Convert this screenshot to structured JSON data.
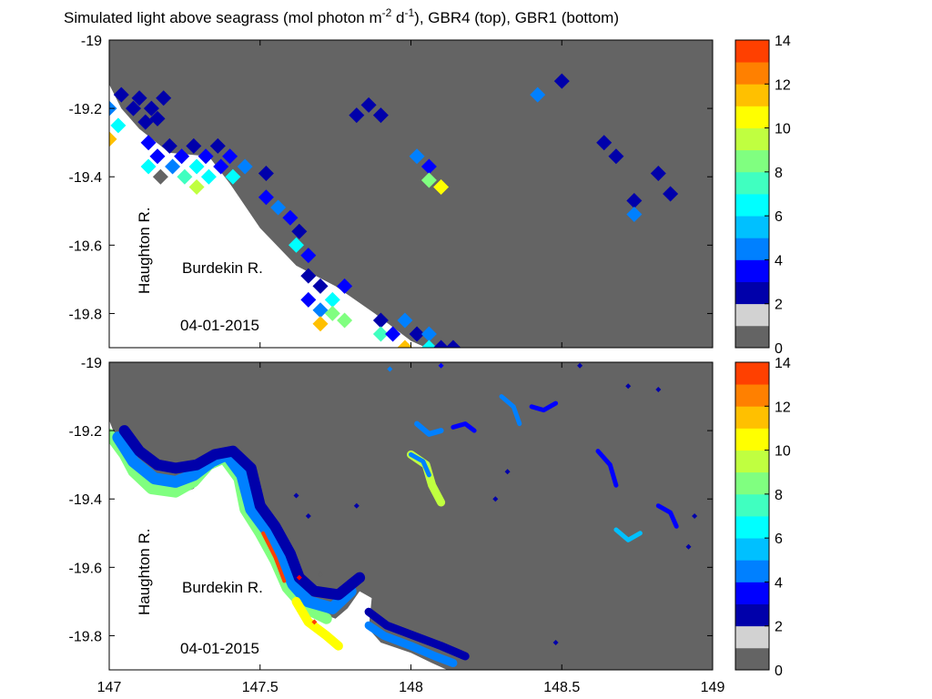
{
  "title": "Simulated light above seagrass (mol photon m^-2 d^-1), GBR4 (top), GBR1 (bottom)",
  "title_parts": {
    "pre": "Simulated light above seagrass (mol photon m",
    "sup1": "-2",
    "mid": " d",
    "sup2": "-1",
    "post": "), GBR4 (top), GBR1 (bottom)"
  },
  "colors": {
    "ocean": "#646464",
    "land": "#ffffff",
    "zero_light": "#d2d2d2",
    "colormap": [
      "#646464",
      "#d2d2d2",
      "#0000aa",
      "#0000ff",
      "#0080ff",
      "#00c0ff",
      "#00ffff",
      "#40ffc0",
      "#80ff80",
      "#c0ff40",
      "#ffff00",
      "#ffc000",
      "#ff8000",
      "#ff4000",
      "#ff0000"
    ]
  },
  "chart_data": [
    {
      "type": "heatmap",
      "name": "GBR4",
      "position": "top",
      "xlim": [
        147,
        149
      ],
      "ylim": [
        -19.9,
        -19
      ],
      "x_ticks": [
        "147",
        "147.5",
        "148",
        "148.5",
        "149"
      ],
      "y_ticks": [
        "-19",
        "-19.2",
        "-19.4",
        "-19.6",
        "-19.8"
      ],
      "show_x_tick_labels": false,
      "colorbar": {
        "range": [
          0,
          14
        ],
        "ticks": [
          "0",
          "2",
          "4",
          "6",
          "8",
          "10",
          "12",
          "14"
        ],
        "levels": 14
      },
      "annotations": [
        "Haughton R.",
        "Burdekin R.",
        "04-01-2015"
      ],
      "coastline": [
        [
          147,
          -19.13
        ],
        [
          147.04,
          -19.2
        ],
        [
          147.1,
          -19.26
        ],
        [
          147.2,
          -19.33
        ],
        [
          147.33,
          -19.34
        ],
        [
          147.4,
          -19.42
        ],
        [
          147.5,
          -19.55
        ],
        [
          147.62,
          -19.66
        ],
        [
          147.75,
          -19.72
        ],
        [
          147.88,
          -19.8
        ],
        [
          148.0,
          -19.88
        ],
        [
          148.05,
          -19.9
        ],
        [
          147,
          -19.9
        ]
      ],
      "cells": [
        {
          "x": 147.0,
          "y": -19.2,
          "v": 3.5
        },
        {
          "x": 147.03,
          "y": -19.25,
          "v": 5.5
        },
        {
          "x": 147.0,
          "y": -19.29,
          "v": 10.5
        },
        {
          "x": 147.04,
          "y": -19.16,
          "v": 1
        },
        {
          "x": 147.08,
          "y": -19.2,
          "v": 1
        },
        {
          "x": 147.1,
          "y": -19.17,
          "v": 1
        },
        {
          "x": 147.14,
          "y": -19.2,
          "v": 1
        },
        {
          "x": 147.18,
          "y": -19.17,
          "v": 1
        },
        {
          "x": 147.16,
          "y": -19.23,
          "v": 1
        },
        {
          "x": 147.12,
          "y": -19.24,
          "v": 1
        },
        {
          "x": 147.13,
          "y": -19.3,
          "v": 2.5
        },
        {
          "x": 147.16,
          "y": -19.34,
          "v": 2.5
        },
        {
          "x": 147.2,
          "y": -19.31,
          "v": 1
        },
        {
          "x": 147.24,
          "y": -19.34,
          "v": 2.5
        },
        {
          "x": 147.28,
          "y": -19.31,
          "v": 1
        },
        {
          "x": 147.32,
          "y": -19.34,
          "v": 2.5
        },
        {
          "x": 147.36,
          "y": -19.31,
          "v": 1
        },
        {
          "x": 147.4,
          "y": -19.34,
          "v": 2.5
        },
        {
          "x": 147.13,
          "y": -19.37,
          "v": 5.5
        },
        {
          "x": 147.17,
          "y": -19.4,
          "v": 0
        },
        {
          "x": 147.21,
          "y": -19.37,
          "v": 3.5
        },
        {
          "x": 147.25,
          "y": -19.4,
          "v": 6.5
        },
        {
          "x": 147.29,
          "y": -19.37,
          "v": 5.5
        },
        {
          "x": 147.29,
          "y": -19.43,
          "v": 8.5
        },
        {
          "x": 147.33,
          "y": -19.4,
          "v": 5.5
        },
        {
          "x": 147.37,
          "y": -19.37,
          "v": 2.5
        },
        {
          "x": 147.41,
          "y": -19.4,
          "v": 5.5
        },
        {
          "x": 147.45,
          "y": -19.37,
          "v": 3.5
        },
        {
          "x": 147.52,
          "y": -19.39,
          "v": 1
        },
        {
          "x": 147.52,
          "y": -19.46,
          "v": 2.5
        },
        {
          "x": 147.56,
          "y": -19.49,
          "v": 3.5
        },
        {
          "x": 147.6,
          "y": -19.52,
          "v": 2.5
        },
        {
          "x": 147.63,
          "y": -19.56,
          "v": 1
        },
        {
          "x": 147.62,
          "y": -19.6,
          "v": 5.5
        },
        {
          "x": 147.66,
          "y": -19.63,
          "v": 2.5
        },
        {
          "x": 147.66,
          "y": -19.69,
          "v": 1
        },
        {
          "x": 147.7,
          "y": -19.72,
          "v": 1
        },
        {
          "x": 147.78,
          "y": -19.72,
          "v": 2.5
        },
        {
          "x": 147.66,
          "y": -19.76,
          "v": 2.5
        },
        {
          "x": 147.7,
          "y": -19.79,
          "v": 3.5
        },
        {
          "x": 147.74,
          "y": -19.76,
          "v": 5.5
        },
        {
          "x": 147.74,
          "y": -19.8,
          "v": 7.5
        },
        {
          "x": 147.7,
          "y": -19.83,
          "v": 10.5
        },
        {
          "x": 147.78,
          "y": -19.82,
          "v": 7.5
        },
        {
          "x": 147.9,
          "y": -19.82,
          "v": 1
        },
        {
          "x": 147.9,
          "y": -19.86,
          "v": 6.5
        },
        {
          "x": 147.94,
          "y": -19.86,
          "v": 2.5
        },
        {
          "x": 147.98,
          "y": -19.82,
          "v": 3.5
        },
        {
          "x": 147.98,
          "y": -19.9,
          "v": 10.5
        },
        {
          "x": 148.02,
          "y": -19.86,
          "v": 1
        },
        {
          "x": 148.06,
          "y": -19.86,
          "v": 3.5
        },
        {
          "x": 148.06,
          "y": -19.9,
          "v": 5.5
        },
        {
          "x": 148.1,
          "y": -19.9,
          "v": 1
        },
        {
          "x": 148.14,
          "y": -19.9,
          "v": 1
        },
        {
          "x": 148.02,
          "y": -19.34,
          "v": 3.5
        },
        {
          "x": 148.06,
          "y": -19.37,
          "v": 2.5
        },
        {
          "x": 148.06,
          "y": -19.41,
          "v": 7.5
        },
        {
          "x": 148.1,
          "y": -19.43,
          "v": 9.5
        },
        {
          "x": 147.82,
          "y": -19.22,
          "v": 1
        },
        {
          "x": 147.86,
          "y": -19.19,
          "v": 1
        },
        {
          "x": 147.9,
          "y": -19.22,
          "v": 1
        },
        {
          "x": 148.42,
          "y": -19.16,
          "v": 3.5
        },
        {
          "x": 148.5,
          "y": -19.12,
          "v": 1
        },
        {
          "x": 148.64,
          "y": -19.3,
          "v": 1
        },
        {
          "x": 148.68,
          "y": -19.34,
          "v": 1
        },
        {
          "x": 148.74,
          "y": -19.47,
          "v": 1
        },
        {
          "x": 148.74,
          "y": -19.51,
          "v": 3.5
        },
        {
          "x": 148.82,
          "y": -19.39,
          "v": 1
        },
        {
          "x": 148.86,
          "y": -19.45,
          "v": 1
        }
      ]
    },
    {
      "type": "heatmap",
      "name": "GBR1",
      "position": "bottom",
      "xlim": [
        147,
        149
      ],
      "ylim": [
        -19.9,
        -19
      ],
      "x_ticks": [
        "147",
        "147.5",
        "148",
        "148.5",
        "149"
      ],
      "y_ticks": [
        "-19",
        "-19.2",
        "-19.4",
        "-19.6",
        "-19.8"
      ],
      "show_x_tick_labels": true,
      "colorbar": {
        "range": [
          0,
          14
        ],
        "ticks": [
          "0",
          "2",
          "4",
          "6",
          "8",
          "10",
          "12",
          "14"
        ],
        "levels": 14
      },
      "annotations": [
        "Haughton R.",
        "Burdekin R.",
        "04-01-2015"
      ],
      "coastline": [
        [
          147,
          -19.17
        ],
        [
          147.03,
          -19.24
        ],
        [
          147.07,
          -19.32
        ],
        [
          147.14,
          -19.38
        ],
        [
          147.22,
          -19.39
        ],
        [
          147.28,
          -19.37
        ],
        [
          147.33,
          -19.31
        ],
        [
          147.38,
          -19.29
        ],
        [
          147.44,
          -19.35
        ],
        [
          147.46,
          -19.44
        ],
        [
          147.51,
          -19.5
        ],
        [
          147.56,
          -19.58
        ],
        [
          147.6,
          -19.66
        ],
        [
          147.66,
          -19.72
        ],
        [
          147.75,
          -19.75
        ],
        [
          147.79,
          -19.72
        ],
        [
          147.83,
          -19.67
        ],
        [
          147.87,
          -19.69
        ],
        [
          147.86,
          -19.78
        ],
        [
          147.9,
          -19.82
        ],
        [
          148.0,
          -19.85
        ],
        [
          148.07,
          -19.88
        ],
        [
          148.12,
          -19.9
        ],
        [
          147,
          -19.9
        ]
      ],
      "shoreline_bands": [
        {
          "pts": [
            [
              147.0,
              -19.21
            ],
            [
              147.05,
              -19.27
            ],
            [
              147.08,
              -19.32
            ],
            [
              147.14,
              -19.37
            ],
            [
              147.22,
              -19.38
            ],
            [
              147.28,
              -19.35
            ],
            [
              147.33,
              -19.3
            ],
            [
              147.38,
              -19.28
            ],
            [
              147.43,
              -19.34
            ],
            [
              147.45,
              -19.43
            ],
            [
              147.5,
              -19.5
            ],
            [
              147.55,
              -19.58
            ],
            [
              147.59,
              -19.66
            ],
            [
              147.65,
              -19.72
            ],
            [
              147.72,
              -19.75
            ]
          ],
          "v": 7.5,
          "w": 12
        },
        {
          "pts": [
            [
              147.03,
              -19.22
            ],
            [
              147.08,
              -19.29
            ],
            [
              147.15,
              -19.34
            ],
            [
              147.22,
              -19.35
            ],
            [
              147.28,
              -19.33
            ],
            [
              147.34,
              -19.29
            ],
            [
              147.39,
              -19.27
            ],
            [
              147.44,
              -19.33
            ],
            [
              147.47,
              -19.43
            ],
            [
              147.52,
              -19.49
            ],
            [
              147.57,
              -19.57
            ],
            [
              147.61,
              -19.65
            ],
            [
              147.66,
              -19.7
            ],
            [
              147.74,
              -19.72
            ],
            [
              147.8,
              -19.67
            ]
          ],
          "v": 3,
          "w": 13
        },
        {
          "pts": [
            [
              147.05,
              -19.2
            ],
            [
              147.1,
              -19.26
            ],
            [
              147.16,
              -19.3
            ],
            [
              147.22,
              -19.31
            ],
            [
              147.29,
              -19.3
            ],
            [
              147.35,
              -19.27
            ],
            [
              147.41,
              -19.26
            ],
            [
              147.47,
              -19.31
            ],
            [
              147.5,
              -19.42
            ],
            [
              147.55,
              -19.48
            ],
            [
              147.6,
              -19.56
            ],
            [
              147.63,
              -19.63
            ],
            [
              147.68,
              -19.67
            ],
            [
              147.76,
              -19.68
            ],
            [
              147.83,
              -19.63
            ]
          ],
          "v": 1,
          "w": 12
        },
        {
          "pts": [
            [
              147.86,
              -19.77
            ],
            [
              147.91,
              -19.8
            ],
            [
              148.0,
              -19.83
            ],
            [
              148.08,
              -19.86
            ],
            [
              148.14,
              -19.88
            ]
          ],
          "v": 3,
          "w": 9
        },
        {
          "pts": [
            [
              147.86,
              -19.73
            ],
            [
              147.92,
              -19.77
            ],
            [
              148.01,
              -19.8
            ],
            [
              148.1,
              -19.83
            ],
            [
              148.18,
              -19.86
            ]
          ],
          "v": 1,
          "w": 9
        },
        {
          "pts": [
            [
              147.62,
              -19.7
            ],
            [
              147.66,
              -19.76
            ],
            [
              147.72,
              -19.8
            ],
            [
              147.76,
              -19.83
            ]
          ],
          "v": 9.5,
          "w": 10
        },
        {
          "pts": [
            [
              147.51,
              -19.5
            ],
            [
              147.55,
              -19.57
            ],
            [
              147.58,
              -19.64
            ]
          ],
          "v": 12.5,
          "w": 4
        }
      ],
      "reef_bands": [
        {
          "pts": [
            [
              148.0,
              -19.27
            ],
            [
              148.05,
              -19.3
            ],
            [
              148.07,
              -19.36
            ],
            [
              148.1,
              -19.41
            ]
          ],
          "v": 8.5,
          "w": 9
        },
        {
          "pts": [
            [
              148.0,
              -19.27
            ],
            [
              148.04,
              -19.29
            ],
            [
              148.06,
              -19.33
            ]
          ],
          "v": 3,
          "w": 5
        },
        {
          "pts": [
            [
              148.02,
              -19.18
            ],
            [
              148.06,
              -19.21
            ],
            [
              148.1,
              -19.2
            ]
          ],
          "v": 3,
          "w": 6
        },
        {
          "pts": [
            [
              148.14,
              -19.19
            ],
            [
              148.18,
              -19.18
            ],
            [
              148.21,
              -19.2
            ]
          ],
          "v": 2,
          "w": 5
        },
        {
          "pts": [
            [
              148.3,
              -19.1
            ],
            [
              148.34,
              -19.13
            ],
            [
              148.36,
              -19.18
            ]
          ],
          "v": 3,
          "w": 5
        },
        {
          "pts": [
            [
              148.4,
              -19.13
            ],
            [
              148.44,
              -19.14
            ],
            [
              148.48,
              -19.12
            ]
          ],
          "v": 2,
          "w": 5
        },
        {
          "pts": [
            [
              148.62,
              -19.26
            ],
            [
              148.66,
              -19.3
            ],
            [
              148.68,
              -19.36
            ]
          ],
          "v": 2,
          "w": 5
        },
        {
          "pts": [
            [
              148.68,
              -19.49
            ],
            [
              148.72,
              -19.52
            ],
            [
              148.76,
              -19.5
            ]
          ],
          "v": 4,
          "w": 5
        },
        {
          "pts": [
            [
              148.82,
              -19.42
            ],
            [
              148.86,
              -19.44
            ],
            [
              148.88,
              -19.48
            ]
          ],
          "v": 2.5,
          "w": 5
        }
      ],
      "cells": [
        {
          "x": 147.93,
          "y": -19.02,
          "v": 3
        },
        {
          "x": 148.1,
          "y": -19.01,
          "v": 2.5
        },
        {
          "x": 147.63,
          "y": -19.63,
          "v": 13.5
        },
        {
          "x": 147.68,
          "y": -19.76,
          "v": 12.5
        },
        {
          "x": 148.56,
          "y": -19.01,
          "v": 1
        },
        {
          "x": 148.72,
          "y": -19.07,
          "v": 1
        },
        {
          "x": 148.82,
          "y": -19.08,
          "v": 1
        },
        {
          "x": 148.94,
          "y": -19.45,
          "v": 1
        },
        {
          "x": 148.92,
          "y": -19.54,
          "v": 1
        },
        {
          "x": 148.48,
          "y": -19.82,
          "v": 1
        },
        {
          "x": 148.28,
          "y": -19.4,
          "v": 1
        },
        {
          "x": 148.32,
          "y": -19.32,
          "v": 1
        },
        {
          "x": 147.62,
          "y": -19.39,
          "v": 1
        },
        {
          "x": 147.66,
          "y": -19.45,
          "v": 1
        },
        {
          "x": 147.82,
          "y": -19.42,
          "v": 1
        },
        {
          "x": 147.7,
          "y": -19.62,
          "v": 0
        }
      ]
    }
  ]
}
